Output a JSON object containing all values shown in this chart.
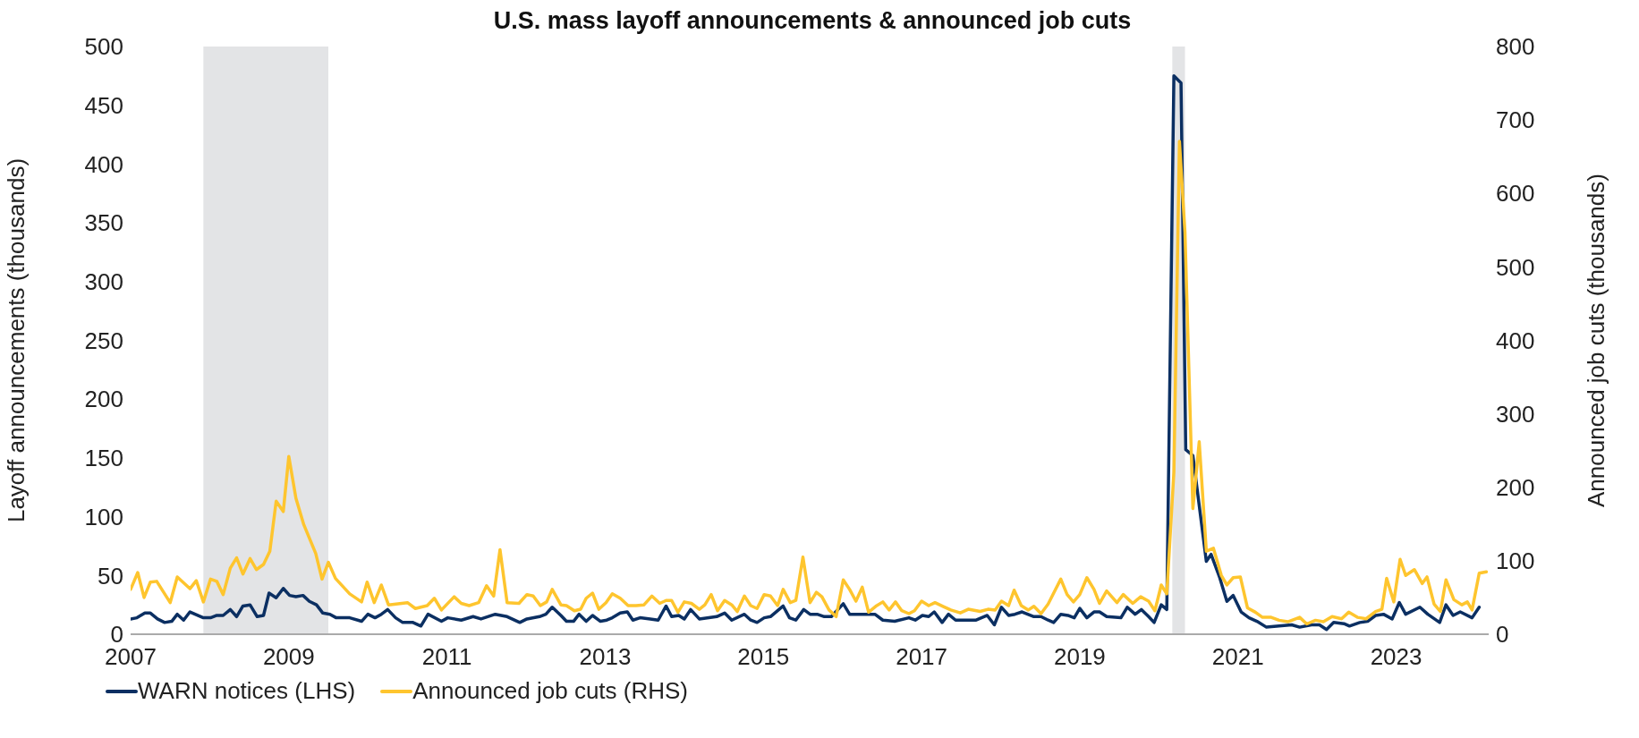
{
  "chart_data": {
    "type": "line",
    "title": "U.S. mass layoff announcements & announced job cuts",
    "ylabel": "Layoff announcements (thousands)",
    "y2label": "Announced job cuts (thousands)",
    "xlim": [
      2007,
      2024.17
    ],
    "xticks": [
      2007,
      2009,
      2011,
      2013,
      2015,
      2017,
      2019,
      2021,
      2023
    ],
    "ylim": [
      0,
      500
    ],
    "yticks": [
      0,
      50,
      100,
      150,
      200,
      250,
      300,
      350,
      400,
      450,
      500
    ],
    "y2lim": [
      0,
      800
    ],
    "y2ticks": [
      0,
      100,
      200,
      300,
      400,
      500,
      600,
      700,
      800
    ],
    "legend": "bottom left",
    "marker": "none",
    "line_style": "solid",
    "bands": [
      {
        "axis": "x",
        "from": 2007.92,
        "to": 2009.5,
        "color": "#e3e4e6"
      },
      {
        "axis": "x",
        "from": 2020.17,
        "to": 2020.33,
        "color": "#e3e4e6"
      }
    ],
    "series": [
      {
        "name": "WARN notices (LHS)",
        "color": "#0b2f62",
        "axis": "y",
        "x": [
          2007.0,
          2007.08,
          2007.18,
          2007.25,
          2007.34,
          2007.43,
          2007.52,
          2007.59,
          2007.67,
          2007.75,
          2007.92,
          2008.01,
          2008.09,
          2008.17,
          2008.26,
          2008.34,
          2008.42,
          2008.51,
          2008.6,
          2008.68,
          2008.75,
          2008.84,
          2008.93,
          2009.01,
          2009.09,
          2009.18,
          2009.26,
          2009.35,
          2009.43,
          2009.52,
          2009.6,
          2009.77,
          2009.92,
          2010.0,
          2010.09,
          2010.17,
          2010.25,
          2010.35,
          2010.44,
          2010.57,
          2010.67,
          2010.76,
          2010.93,
          2011.01,
          2011.18,
          2011.33,
          2011.43,
          2011.61,
          2011.76,
          2011.92,
          2012.01,
          2012.17,
          2012.25,
          2012.33,
          2012.44,
          2012.51,
          2012.6,
          2012.67,
          2012.76,
          2012.84,
          2012.94,
          2013.02,
          2013.09,
          2013.19,
          2013.28,
          2013.35,
          2013.44,
          2013.57,
          2013.67,
          2013.77,
          2013.84,
          2013.93,
          2014.0,
          2014.08,
          2014.19,
          2014.41,
          2014.51,
          2014.6,
          2014.76,
          2014.84,
          2014.92,
          2015.01,
          2015.09,
          2015.25,
          2015.33,
          2015.41,
          2015.51,
          2015.59,
          2015.68,
          2015.77,
          2015.86,
          2016.01,
          2016.09,
          2016.26,
          2016.41,
          2016.51,
          2016.66,
          2016.84,
          2016.92,
          2017.01,
          2017.09,
          2017.16,
          2017.26,
          2017.34,
          2017.43,
          2017.52,
          2017.69,
          2017.83,
          2017.92,
          2018.01,
          2018.1,
          2018.18,
          2018.27,
          2018.42,
          2018.51,
          2018.6,
          2018.67,
          2018.76,
          2018.85,
          2018.93,
          2019.0,
          2019.09,
          2019.18,
          2019.25,
          2019.34,
          2019.52,
          2019.6,
          2019.7,
          2019.78,
          2019.87,
          2019.94,
          2020.03,
          2020.1,
          2020.19,
          2020.28,
          2020.34,
          2020.43,
          2020.6,
          2020.66,
          2020.77,
          2020.86,
          2020.94,
          2021.04,
          2021.14,
          2021.24,
          2021.36,
          2021.52,
          2021.68,
          2021.78,
          2021.93,
          2022.03,
          2022.12,
          2022.21,
          2022.34,
          2022.41,
          2022.54,
          2022.64,
          2022.74,
          2022.84,
          2022.95,
          2023.04,
          2023.12,
          2023.3,
          2023.4,
          2023.55,
          2023.63,
          2023.72,
          2023.81,
          2023.96,
          2024.05
        ],
        "values": [
          13,
          14,
          18,
          18,
          13,
          10,
          11,
          17,
          12,
          19,
          14,
          14,
          16,
          16,
          21,
          15,
          24,
          25,
          15,
          16,
          35,
          31,
          39,
          33,
          32,
          33,
          28,
          25,
          18,
          17,
          14,
          14,
          11,
          17,
          14,
          17,
          21,
          14,
          10,
          10,
          7,
          17,
          11,
          14,
          12,
          15,
          13,
          17,
          15,
          10,
          13,
          15,
          17,
          23,
          16,
          11,
          11,
          17,
          11,
          16,
          11,
          12,
          14,
          18,
          19,
          12,
          14,
          13,
          12,
          24,
          15,
          16,
          13,
          21,
          13,
          15,
          18,
          12,
          17,
          12,
          10,
          14,
          15,
          24,
          14,
          12,
          21,
          17,
          17,
          15,
          15,
          26,
          17,
          17,
          17,
          12,
          11,
          14,
          12,
          16,
          15,
          19,
          10,
          17,
          12,
          12,
          12,
          16,
          8,
          23,
          16,
          17,
          19,
          15,
          15,
          12,
          10,
          17,
          16,
          14,
          22,
          14,
          19,
          19,
          15,
          14,
          23,
          17,
          21,
          15,
          10,
          25,
          21,
          475,
          469,
          157,
          152,
          62,
          68,
          48,
          28,
          33,
          19,
          14,
          11,
          6,
          7,
          8,
          6,
          8,
          8,
          4,
          10,
          9,
          7,
          10,
          11,
          16,
          17,
          13,
          27,
          17,
          23,
          17,
          10,
          25,
          16,
          19,
          14,
          23
        ]
      },
      {
        "name": "Announced job cuts (RHS)",
        "color": "#fec52e",
        "axis": "y2",
        "x": [
          2007.0,
          2007.09,
          2007.17,
          2007.25,
          2007.33,
          2007.5,
          2007.59,
          2007.75,
          2007.83,
          2007.92,
          2008.01,
          2008.09,
          2008.17,
          2008.26,
          2008.34,
          2008.42,
          2008.51,
          2008.59,
          2008.68,
          2008.76,
          2008.84,
          2008.93,
          2009.0,
          2009.09,
          2009.19,
          2009.34,
          2009.42,
          2009.5,
          2009.59,
          2009.77,
          2009.92,
          2009.99,
          2010.08,
          2010.17,
          2010.26,
          2010.5,
          2010.6,
          2010.75,
          2010.84,
          2010.93,
          2011.09,
          2011.18,
          2011.28,
          2011.4,
          2011.5,
          2011.59,
          2011.67,
          2011.76,
          2011.91,
          2012.01,
          2012.09,
          2012.18,
          2012.26,
          2012.33,
          2012.44,
          2012.51,
          2012.61,
          2012.69,
          2012.76,
          2012.84,
          2012.92,
          2013.01,
          2013.09,
          2013.19,
          2013.29,
          2013.39,
          2013.49,
          2013.59,
          2013.69,
          2013.77,
          2013.84,
          2013.92,
          2014.0,
          2014.09,
          2014.19,
          2014.26,
          2014.34,
          2014.42,
          2014.51,
          2014.6,
          2014.67,
          2014.76,
          2014.84,
          2014.92,
          2015.01,
          2015.09,
          2015.18,
          2015.25,
          2015.34,
          2015.41,
          2015.5,
          2015.59,
          2015.67,
          2015.74,
          2015.83,
          2015.92,
          2016.01,
          2016.09,
          2016.17,
          2016.25,
          2016.33,
          2016.42,
          2016.51,
          2016.59,
          2016.67,
          2016.75,
          2016.84,
          2016.91,
          2017.0,
          2017.09,
          2017.17,
          2017.27,
          2017.37,
          2017.49,
          2017.59,
          2017.74,
          2017.84,
          2017.93,
          2018.01,
          2018.1,
          2018.17,
          2018.26,
          2018.35,
          2018.42,
          2018.51,
          2018.6,
          2018.67,
          2018.76,
          2018.84,
          2018.92,
          2019.0,
          2019.09,
          2019.18,
          2019.25,
          2019.34,
          2019.47,
          2019.55,
          2019.67,
          2019.77,
          2019.87,
          2019.95,
          2020.03,
          2020.1,
          2020.19,
          2020.26,
          2020.33,
          2020.43,
          2020.51,
          2020.6,
          2020.69,
          2020.79,
          2020.86,
          2020.94,
          2021.03,
          2021.12,
          2021.22,
          2021.31,
          2021.42,
          2021.52,
          2021.63,
          2021.78,
          2021.87,
          2021.98,
          2022.08,
          2022.19,
          2022.31,
          2022.4,
          2022.51,
          2022.62,
          2022.74,
          2022.82,
          2022.88,
          2022.97,
          2023.05,
          2023.12,
          2023.23,
          2023.33,
          2023.39,
          2023.48,
          2023.56,
          2023.63,
          2023.73,
          2023.83,
          2023.9,
          2023.96,
          2024.05,
          2024.14
        ],
        "values": [
          61,
          84,
          50,
          71,
          72,
          43,
          78,
          62,
          73,
          44,
          75,
          72,
          54,
          90,
          104,
          82,
          103,
          88,
          95,
          113,
          181,
          167,
          242,
          185,
          149,
          110,
          75,
          98,
          76,
          55,
          44,
          71,
          43,
          67,
          40,
          43,
          35,
          39,
          49,
          33,
          51,
          42,
          39,
          43,
          66,
          52,
          115,
          43,
          42,
          54,
          52,
          39,
          44,
          61,
          40,
          39,
          32,
          34,
          49,
          56,
          34,
          43,
          55,
          49,
          39,
          39,
          40,
          52,
          42,
          46,
          46,
          30,
          44,
          42,
          34,
          40,
          54,
          32,
          46,
          40,
          31,
          52,
          39,
          35,
          54,
          52,
          39,
          61,
          43,
          46,
          105,
          43,
          57,
          51,
          33,
          24,
          74,
          61,
          45,
          64,
          30,
          38,
          44,
          33,
          44,
          32,
          28,
          32,
          45,
          39,
          43,
          38,
          33,
          29,
          34,
          31,
          34,
          33,
          45,
          39,
          60,
          39,
          33,
          38,
          28,
          41,
          56,
          75,
          54,
          44,
          54,
          77,
          61,
          42,
          59,
          43,
          54,
          42,
          51,
          45,
          32,
          67,
          55,
          221,
          671,
          547,
          171,
          262,
          113,
          117,
          80,
          67,
          77,
          78,
          36,
          30,
          23,
          23,
          19,
          17,
          23,
          14,
          19,
          17,
          24,
          21,
          30,
          23,
          21,
          31,
          34,
          76,
          44,
          102,
          80,
          88,
          69,
          78,
          41,
          31,
          74,
          47,
          40,
          44,
          33,
          83,
          85
        ]
      }
    ]
  }
}
